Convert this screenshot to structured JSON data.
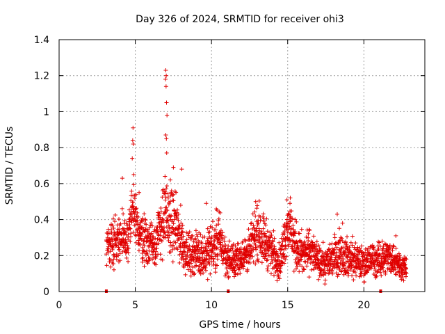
{
  "chart_data": {
    "type": "scatter",
    "title": "Day 326 of 2024, SRMTID for receiver ohi3",
    "xlabel": "GPS time / hours",
    "ylabel": "SRMTID / TECUs",
    "xlim": [
      0,
      24
    ],
    "ylim": [
      0,
      1.4
    ],
    "x_ticks": [
      0,
      5,
      10,
      15,
      20
    ],
    "x_tick_labels": [
      "0",
      "5",
      "10",
      "15",
      "20"
    ],
    "y_ticks": [
      0,
      0.2,
      0.4,
      0.6,
      0.8,
      1.0,
      1.2,
      1.4
    ],
    "y_tick_labels": [
      "0",
      "0.2",
      "0.4",
      "0.6",
      "0.8",
      "1",
      "1.2",
      "1.4"
    ],
    "grid": true,
    "marker": "+",
    "marker_color": "#e00000",
    "gap_markers_x": [
      3.1,
      11.1,
      21.1
    ],
    "envelope": [
      [
        3.1,
        0.26,
        0.1
      ],
      [
        3.5,
        0.28,
        0.12
      ],
      [
        4.0,
        0.3,
        0.12
      ],
      [
        4.5,
        0.28,
        0.12
      ],
      [
        4.8,
        0.45,
        0.16
      ],
      [
        5.3,
        0.32,
        0.12
      ],
      [
        5.8,
        0.28,
        0.12
      ],
      [
        6.3,
        0.27,
        0.12
      ],
      [
        6.9,
        0.42,
        0.18
      ],
      [
        7.4,
        0.38,
        0.16
      ],
      [
        7.9,
        0.32,
        0.14
      ],
      [
        8.4,
        0.2,
        0.1
      ],
      [
        9.0,
        0.22,
        0.1
      ],
      [
        9.5,
        0.2,
        0.1
      ],
      [
        10.0,
        0.24,
        0.12
      ],
      [
        10.5,
        0.3,
        0.14
      ],
      [
        11.0,
        0.18,
        0.08
      ],
      [
        11.5,
        0.17,
        0.08
      ],
      [
        12.0,
        0.2,
        0.08
      ],
      [
        12.5,
        0.22,
        0.1
      ],
      [
        13.0,
        0.35,
        0.14
      ],
      [
        13.5,
        0.28,
        0.12
      ],
      [
        14.0,
        0.22,
        0.1
      ],
      [
        14.5,
        0.16,
        0.08
      ],
      [
        15.0,
        0.38,
        0.14
      ],
      [
        15.5,
        0.25,
        0.12
      ],
      [
        16.0,
        0.2,
        0.1
      ],
      [
        16.5,
        0.24,
        0.1
      ],
      [
        17.0,
        0.16,
        0.08
      ],
      [
        17.5,
        0.15,
        0.08
      ],
      [
        18.0,
        0.2,
        0.1
      ],
      [
        18.5,
        0.22,
        0.1
      ],
      [
        19.0,
        0.18,
        0.1
      ],
      [
        19.5,
        0.17,
        0.08
      ],
      [
        20.0,
        0.16,
        0.08
      ],
      [
        20.5,
        0.18,
        0.08
      ],
      [
        21.0,
        0.17,
        0.08
      ],
      [
        21.5,
        0.2,
        0.08
      ],
      [
        22.0,
        0.18,
        0.08
      ],
      [
        22.5,
        0.14,
        0.06
      ],
      [
        22.8,
        0.13,
        0.06
      ]
    ],
    "spikes": [
      [
        4.85,
        0.91
      ],
      [
        4.83,
        0.84
      ],
      [
        4.87,
        0.82
      ],
      [
        4.8,
        0.74
      ],
      [
        4.9,
        0.65
      ],
      [
        7.0,
        1.23
      ],
      [
        7.03,
        1.2
      ],
      [
        6.98,
        1.18
      ],
      [
        7.02,
        1.14
      ],
      [
        7.05,
        1.05
      ],
      [
        7.08,
        0.98
      ],
      [
        7.0,
        0.87
      ],
      [
        7.04,
        0.85
      ],
      [
        7.06,
        0.77
      ],
      [
        6.95,
        0.64
      ],
      [
        7.5,
        0.69
      ],
      [
        8.05,
        0.68
      ],
      [
        7.3,
        0.62
      ],
      [
        5.25,
        0.55
      ],
      [
        4.15,
        0.63
      ],
      [
        9.65,
        0.49
      ],
      [
        12.9,
        0.5
      ],
      [
        14.95,
        0.51
      ],
      [
        15.15,
        0.49
      ],
      [
        18.25,
        0.43
      ],
      [
        18.6,
        0.38
      ],
      [
        22.1,
        0.31
      ],
      [
        21.2,
        0.28
      ],
      [
        19.45,
        0.27
      ]
    ]
  }
}
